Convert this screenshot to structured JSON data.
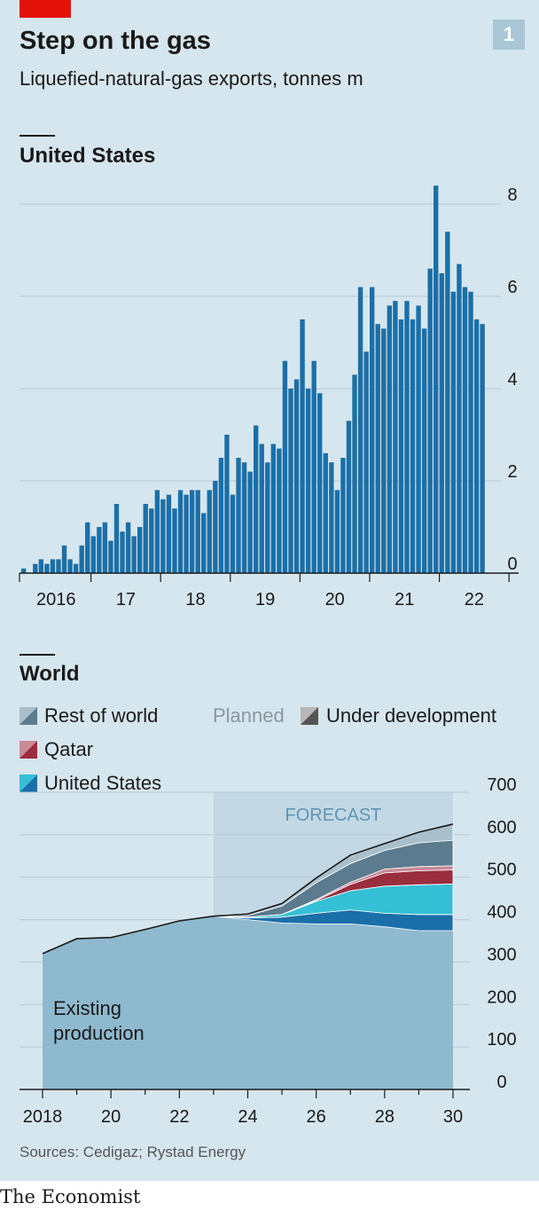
{
  "header": {
    "title": "Step on the gas",
    "subtitle": "Liquefied-natural-gas exports, tonnes m",
    "badge": "1"
  },
  "colors": {
    "accent": "#e3120b",
    "us_bars": "#1b6fa8",
    "existing": "#8fb9cf",
    "us_existing": "#1b6fa8",
    "us_planned": "#36c0d6",
    "qatar_existing": "#9a2d3e",
    "qatar_planned": "#c98a97",
    "row_existing": "#5c7b8f",
    "row_planned": "#a9bfcc"
  },
  "chart_data": [
    {
      "type": "bar",
      "title": "United States",
      "xlabel": "",
      "ylabel": "",
      "ylim": [
        0,
        8.5
      ],
      "yticks": [
        "8",
        "6",
        "4",
        "2",
        "0"
      ],
      "year_labels": [
        "2016",
        "17",
        "18",
        "19",
        "20",
        "21",
        "22"
      ],
      "start": "2016-01",
      "values": [
        0.1,
        0.0,
        0.2,
        0.3,
        0.2,
        0.3,
        0.3,
        0.6,
        0.3,
        0.2,
        0.6,
        1.1,
        0.8,
        1.0,
        1.1,
        0.7,
        1.5,
        0.9,
        1.1,
        0.8,
        1.0,
        1.5,
        1.4,
        1.8,
        1.6,
        1.7,
        1.4,
        1.8,
        1.7,
        1.8,
        1.8,
        1.3,
        1.8,
        2.0,
        2.5,
        3.0,
        1.7,
        2.5,
        2.4,
        2.2,
        3.2,
        2.8,
        2.4,
        2.8,
        2.7,
        4.6,
        4.0,
        4.2,
        5.5,
        4.0,
        4.6,
        3.9,
        2.6,
        2.4,
        1.8,
        2.5,
        3.3,
        4.3,
        6.2,
        4.8,
        6.2,
        5.4,
        5.3,
        5.8,
        5.9,
        5.5,
        5.9,
        5.5,
        5.8,
        5.3,
        6.6,
        8.4,
        6.5,
        7.4,
        6.1,
        6.7,
        6.2,
        6.1,
        5.5,
        5.4
      ]
    },
    {
      "type": "area",
      "title": "World",
      "ylim": [
        0,
        700
      ],
      "yticks": [
        "700",
        "600",
        "500",
        "400",
        "300",
        "200",
        "100",
        "0"
      ],
      "x": [
        2018,
        2019,
        2020,
        2021,
        2022,
        2023,
        2024,
        2025,
        2026,
        2027,
        2028,
        2029,
        2030
      ],
      "xticks": [
        "2018",
        "20",
        "22",
        "24",
        "26",
        "28",
        "30"
      ],
      "forecast": {
        "label": "FORECAST",
        "from": 2023,
        "to": 2030
      },
      "annotation": [
        "Existing",
        "production"
      ],
      "series": [
        {
          "name": "Existing production",
          "values": [
            320,
            355,
            358,
            377,
            397,
            408,
            400,
            392,
            390,
            390,
            383,
            374,
            374
          ]
        },
        {
          "name": "United States",
          "part": "under development",
          "values": [
            0,
            0,
            0,
            0,
            0,
            0,
            4,
            14,
            25,
            33,
            32,
            38,
            38
          ]
        },
        {
          "name": "United States",
          "part": "planned",
          "values": [
            0,
            0,
            0,
            0,
            0,
            0,
            2,
            6,
            28,
            45,
            64,
            70,
            72
          ]
        },
        {
          "name": "Qatar",
          "part": "under development",
          "values": [
            0,
            0,
            0,
            0,
            0,
            0,
            0,
            0,
            2,
            15,
            31,
            33,
            33
          ]
        },
        {
          "name": "Qatar",
          "part": "planned",
          "values": [
            0,
            0,
            0,
            0,
            0,
            0,
            0,
            0,
            2,
            5,
            9,
            10,
            10
          ]
        },
        {
          "name": "Rest of world",
          "part": "under development",
          "values": [
            0,
            0,
            0,
            0,
            0,
            0,
            4,
            20,
            40,
            44,
            44,
            56,
            60
          ]
        },
        {
          "name": "Rest of world",
          "part": "planned",
          "values": [
            0,
            0,
            0,
            0,
            0,
            0,
            3,
            6,
            11,
            20,
            16,
            25,
            38
          ]
        }
      ]
    }
  ],
  "legend": {
    "rest_of_world": "Rest of world",
    "qatar": "Qatar",
    "united_states": "United States",
    "planned": "Planned",
    "under_development": "Under development"
  },
  "source": "Sources: Cedigaz; Rystad Energy",
  "brand": "The Economist"
}
